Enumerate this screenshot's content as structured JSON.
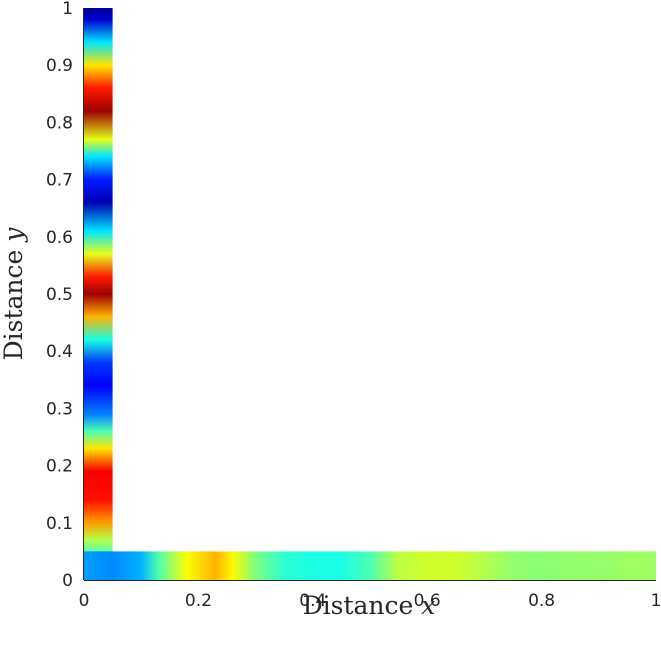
{
  "chart_data": {
    "type": "heatmap",
    "title": "",
    "xlabel": "Distance x",
    "ylabel": "Distance y",
    "xlabel_parts": {
      "text": "Distance",
      "var": "x"
    },
    "ylabel_parts": {
      "text": "Distance",
      "var": "y"
    },
    "xlim": [
      0,
      1
    ],
    "ylim": [
      0,
      1
    ],
    "xticks": [
      0,
      0.2,
      0.4,
      0.6,
      0.8,
      1
    ],
    "xtick_labels": [
      "0",
      "0.2",
      "0.4",
      "0.6",
      "0.8",
      "1"
    ],
    "yticks": [
      0,
      0.1,
      0.2,
      0.3,
      0.4,
      0.5,
      0.6,
      0.7,
      0.8,
      0.9,
      1
    ],
    "ytick_labels": [
      "0",
      "0.1",
      "0.2",
      "0.3",
      "0.4",
      "0.5",
      "0.6",
      "0.7",
      "0.8",
      "0.9",
      "1"
    ],
    "colormap": "jet",
    "grid": false,
    "legend": false,
    "regions": [
      {
        "name": "vertical-strip",
        "x_range": [
          0,
          0.05
        ],
        "y_range": [
          0,
          1
        ],
        "vary_along": "y",
        "stops": [
          {
            "pos": 0.0,
            "value": 0.25
          },
          {
            "pos": 0.03,
            "value": 0.38
          },
          {
            "pos": 0.07,
            "value": 0.55
          },
          {
            "pos": 0.1,
            "value": 0.72
          },
          {
            "pos": 0.14,
            "value": 0.86
          },
          {
            "pos": 0.19,
            "value": 0.88
          },
          {
            "pos": 0.23,
            "value": 0.65
          },
          {
            "pos": 0.26,
            "value": 0.45
          },
          {
            "pos": 0.29,
            "value": 0.25
          },
          {
            "pos": 0.34,
            "value": 0.12
          },
          {
            "pos": 0.38,
            "value": 0.18
          },
          {
            "pos": 0.42,
            "value": 0.4
          },
          {
            "pos": 0.46,
            "value": 0.7
          },
          {
            "pos": 0.5,
            "value": 0.97
          },
          {
            "pos": 0.53,
            "value": 0.85
          },
          {
            "pos": 0.57,
            "value": 0.6
          },
          {
            "pos": 0.61,
            "value": 0.35
          },
          {
            "pos": 0.66,
            "value": 0.05
          },
          {
            "pos": 0.7,
            "value": 0.15
          },
          {
            "pos": 0.74,
            "value": 0.35
          },
          {
            "pos": 0.77,
            "value": 0.6
          },
          {
            "pos": 0.82,
            "value": 0.97
          },
          {
            "pos": 0.86,
            "value": 0.85
          },
          {
            "pos": 0.9,
            "value": 0.65
          },
          {
            "pos": 0.94,
            "value": 0.35
          },
          {
            "pos": 0.98,
            "value": 0.08
          },
          {
            "pos": 1.0,
            "value": 0.02
          }
        ]
      },
      {
        "name": "horizontal-strip",
        "x_range": [
          0,
          1
        ],
        "y_range": [
          0,
          0.05
        ],
        "vary_along": "x",
        "stops": [
          {
            "pos": 0.0,
            "value": 0.28
          },
          {
            "pos": 0.05,
            "value": 0.26
          },
          {
            "pos": 0.1,
            "value": 0.3
          },
          {
            "pos": 0.13,
            "value": 0.45
          },
          {
            "pos": 0.18,
            "value": 0.62
          },
          {
            "pos": 0.23,
            "value": 0.7
          },
          {
            "pos": 0.26,
            "value": 0.63
          },
          {
            "pos": 0.3,
            "value": 0.5
          },
          {
            "pos": 0.35,
            "value": 0.42
          },
          {
            "pos": 0.4,
            "value": 0.4
          },
          {
            "pos": 0.45,
            "value": 0.4
          },
          {
            "pos": 0.5,
            "value": 0.45
          },
          {
            "pos": 0.55,
            "value": 0.56
          },
          {
            "pos": 0.6,
            "value": 0.58
          },
          {
            "pos": 0.65,
            "value": 0.58
          },
          {
            "pos": 0.7,
            "value": 0.55
          },
          {
            "pos": 0.75,
            "value": 0.52
          },
          {
            "pos": 0.8,
            "value": 0.51
          },
          {
            "pos": 0.85,
            "value": 0.52
          },
          {
            "pos": 0.9,
            "value": 0.52
          },
          {
            "pos": 0.95,
            "value": 0.53
          },
          {
            "pos": 1.0,
            "value": 0.53
          }
        ]
      }
    ]
  }
}
